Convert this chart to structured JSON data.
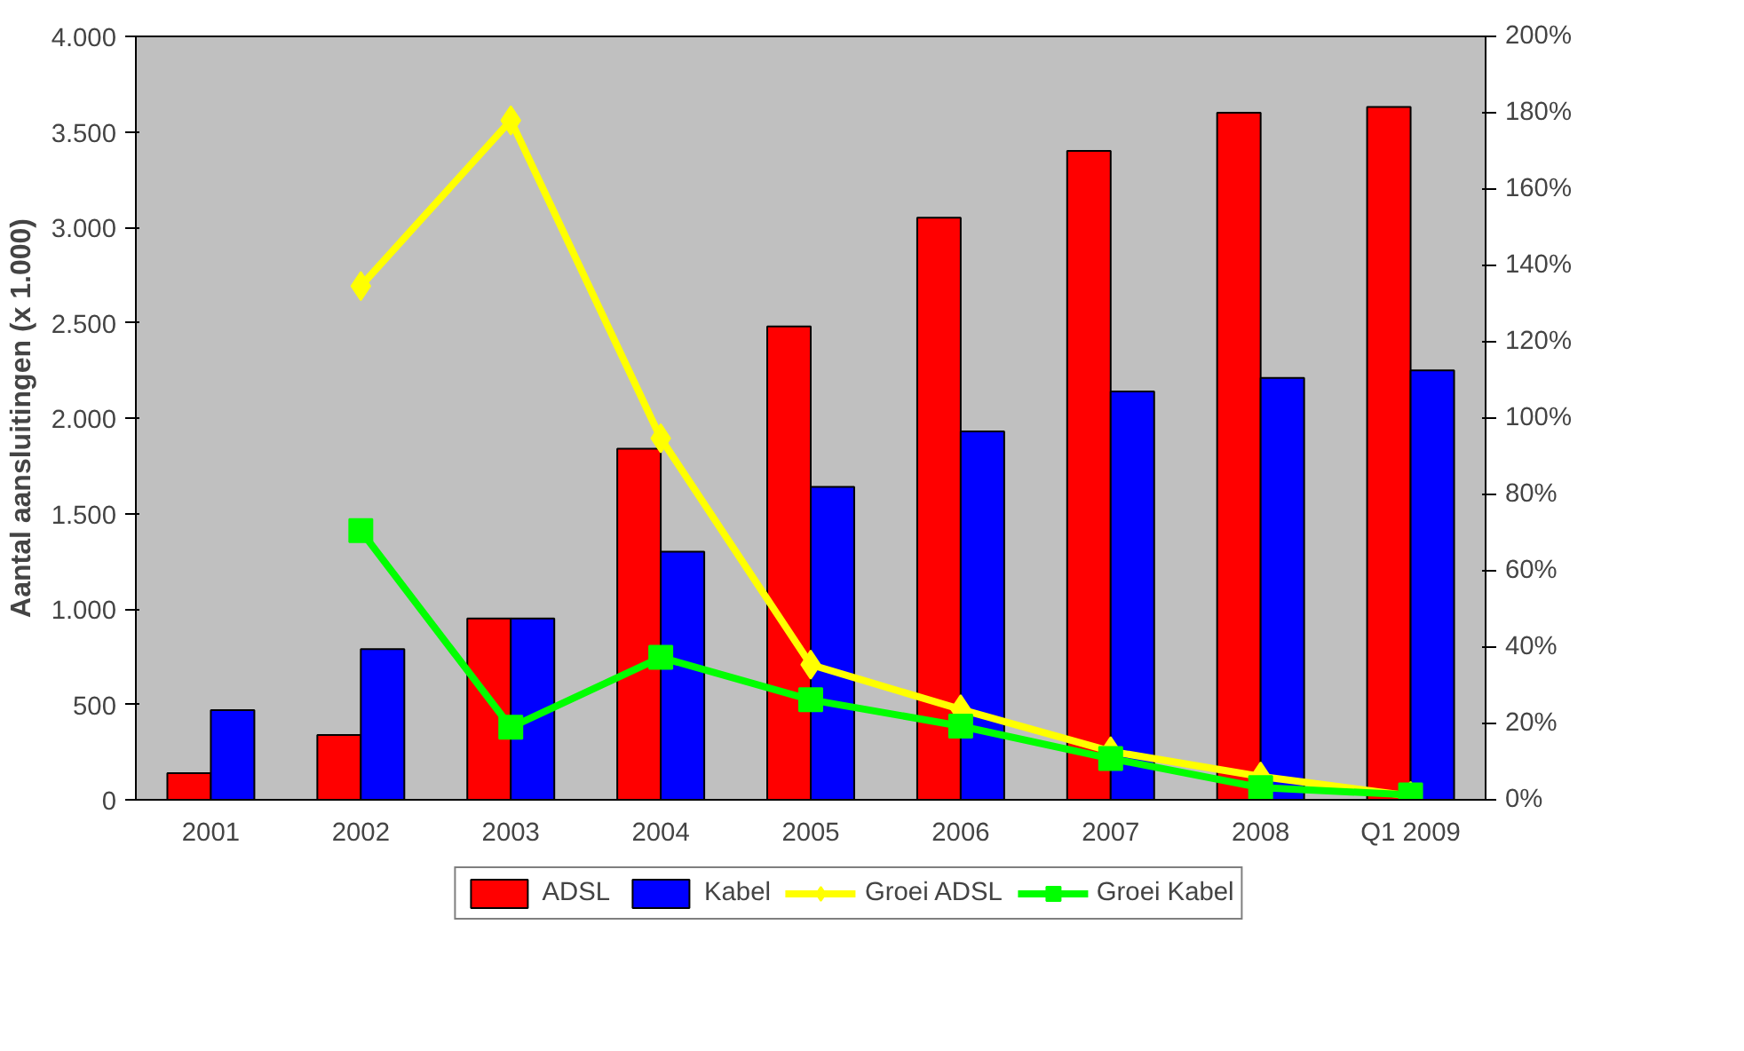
{
  "chart_data": {
    "type": "bar",
    "ylabel": "Aantal aansluitingen (x 1.000)",
    "categories": [
      "2001",
      "2002",
      "2003",
      "2004",
      "2005",
      "2006",
      "2007",
      "2008",
      "Q1 2009"
    ],
    "series": [
      {
        "name": "ADSL",
        "color": "#ff0000",
        "values": [
          140,
          340,
          950,
          1840,
          2480,
          3050,
          3400,
          3600,
          3630
        ]
      },
      {
        "name": "Kabel",
        "color": "#0000ff",
        "values": [
          470,
          790,
          950,
          1300,
          1640,
          1930,
          2140,
          2210,
          2250
        ]
      },
      {
        "name": "Groei ADSL",
        "type": "line",
        "axis": "y2",
        "marker": "diamond",
        "color": "#ffff00",
        "values": [
          null,
          134.6,
          178,
          94.7,
          35.4,
          23.7,
          12.7,
          6.1,
          1
        ]
      },
      {
        "name": "Groei Kabel",
        "type": "line",
        "axis": "y2",
        "marker": "square",
        "color": "#00ff00",
        "values": [
          null,
          70.5,
          19,
          37.3,
          26.2,
          19.3,
          10.8,
          3.2,
          1.3
        ]
      }
    ],
    "ylim": [
      0,
      4000
    ],
    "yticks": [
      {
        "value": 0,
        "label": "0"
      },
      {
        "value": 500,
        "label": "500"
      },
      {
        "value": 1000,
        "label": "1.000"
      },
      {
        "value": 1500,
        "label": "1.500"
      },
      {
        "value": 2000,
        "label": "2.000"
      },
      {
        "value": 2500,
        "label": "2.500"
      },
      {
        "value": 3000,
        "label": "3.000"
      },
      {
        "value": 3500,
        "label": "3.500"
      },
      {
        "value": 4000,
        "label": "4.000"
      }
    ],
    "y2lim": [
      0,
      200
    ],
    "y2ticks": [
      {
        "value": 0,
        "label": "0%"
      },
      {
        "value": 20,
        "label": "20%"
      },
      {
        "value": 40,
        "label": "40%"
      },
      {
        "value": 60,
        "label": "60%"
      },
      {
        "value": 80,
        "label": "80%"
      },
      {
        "value": 100,
        "label": "100%"
      },
      {
        "value": 120,
        "label": "120%"
      },
      {
        "value": 140,
        "label": "140%"
      },
      {
        "value": 160,
        "label": "160%"
      },
      {
        "value": 180,
        "label": "180%"
      },
      {
        "value": 200,
        "label": "200%"
      }
    ],
    "grid": false,
    "legend": "bottom"
  }
}
